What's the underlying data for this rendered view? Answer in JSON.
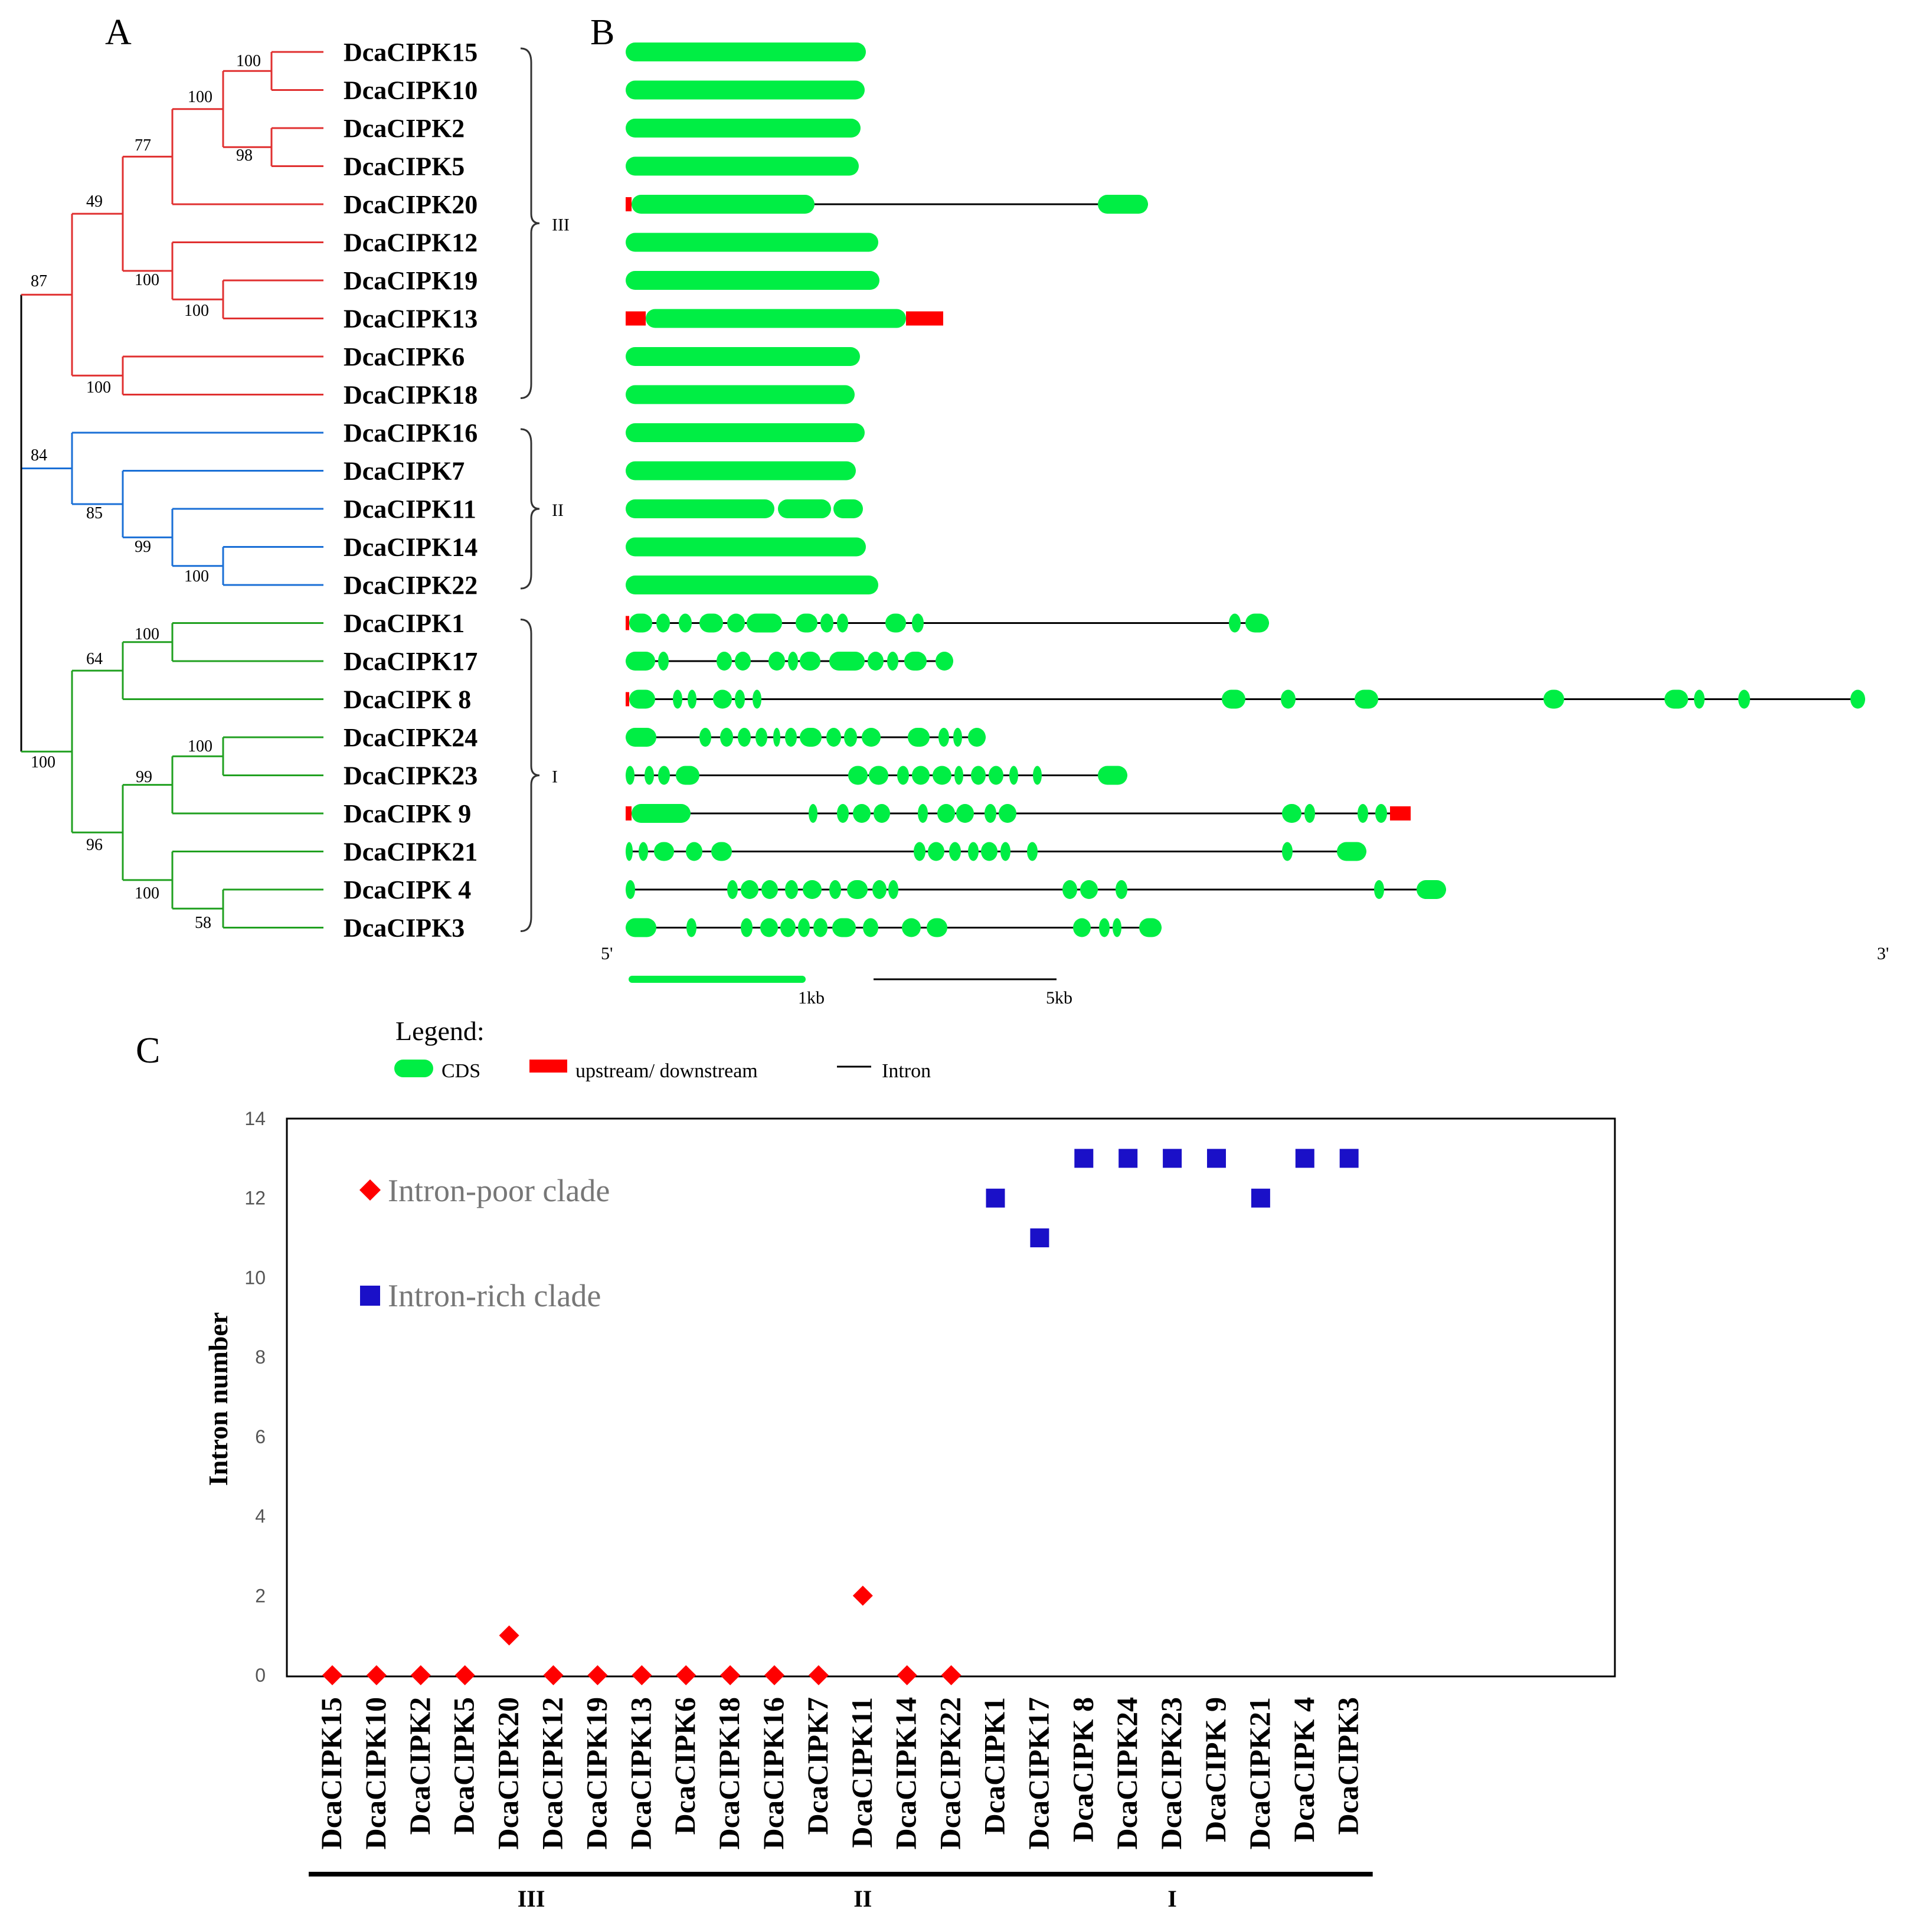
{
  "panels": {
    "a": "A",
    "b": "B",
    "c": "C"
  },
  "genes": [
    "DcaCIPK15",
    "DcaCIPK10",
    "DcaCIPK2",
    "DcaCIPK5",
    "DcaCIPK20",
    "DcaCIPK12",
    "DcaCIPK19",
    "DcaCIPK13",
    "DcaCIPK6",
    "DcaCIPK18",
    "DcaCIPK16",
    "DcaCIPK7",
    "DcaCIPK11",
    "DcaCIPK14",
    "DcaCIPK22",
    "DcaCIPK1",
    "DcaCIPK17",
    "DcaCIPK 8",
    "DcaCIPK24",
    "DcaCIPK23",
    "DcaCIPK 9",
    "DcaCIPK21",
    "DcaCIPK 4",
    "DcaCIPK3"
  ],
  "tree": {
    "bootstraps": [
      "100",
      "100",
      "98",
      "77",
      "49",
      "100",
      "100",
      "87",
      "100",
      "84",
      "85",
      "99",
      "100",
      "100",
      "64",
      "100",
      "99",
      "96",
      "100",
      "58",
      "100"
    ],
    "clades": [
      "III",
      "II",
      "I"
    ],
    "colors": {
      "III": "#e03030",
      "II": "#1a6fd6",
      "I": "#20a020",
      "root": "#000000"
    }
  },
  "gene_structure": {
    "five_prime": "5'",
    "three_prime": "3'",
    "scale_1kb": "1kb",
    "scale_5kb": "5kb",
    "legend": {
      "title": "Legend:",
      "cds": "CDS",
      "utr": "upstream/ downstream",
      "intron": "Intron"
    },
    "colors": {
      "cds": "#00ee44",
      "utr": "#ff0000",
      "intron": "#000000"
    }
  },
  "chart_data": {
    "type": "scatter",
    "xlabel": "",
    "ylabel": "Intron number",
    "ylim": [
      0,
      14
    ],
    "yticks": [
      "0",
      "2",
      "4",
      "6",
      "8",
      "10",
      "12",
      "14"
    ],
    "categories": [
      "DcaCIPK15",
      "DcaCIPK10",
      "DcaCIPK2",
      "DcaCIPK5",
      "DcaCIPK20",
      "DcaCIPK12",
      "DcaCIPK19",
      "DcaCIPK13",
      "DcaCIPK6",
      "DcaCIPK18",
      "DcaCIPK16",
      "DcaCIPK7",
      "DcaCIPK11",
      "DcaCIPK14",
      "DcaCIPK22",
      "DcaCIPK1",
      "DcaCIPK17",
      "DcaCIPK 8",
      "DcaCIPK24",
      "DcaCIPK23",
      "DcaCIPK 9",
      "DcaCIPK21",
      "DcaCIPK 4",
      "DcaCIPK3"
    ],
    "series": [
      {
        "name": "Intron-poor clade",
        "marker": "diamond",
        "color": "#ff0000",
        "values": [
          0,
          0,
          0,
          0,
          1,
          0,
          0,
          0,
          0,
          0,
          0,
          0,
          2,
          0,
          0,
          null,
          null,
          null,
          null,
          null,
          null,
          null,
          null,
          null
        ]
      },
      {
        "name": "Intron-rich clade",
        "marker": "square",
        "color": "#1a10c8",
        "values": [
          null,
          null,
          null,
          null,
          null,
          null,
          null,
          null,
          null,
          null,
          null,
          null,
          null,
          null,
          null,
          12,
          11,
          13,
          13,
          13,
          13,
          12,
          13,
          13
        ]
      }
    ],
    "groups": [
      {
        "label": "III",
        "from": 0,
        "to": 9
      },
      {
        "label": "II",
        "from": 10,
        "to": 14
      },
      {
        "label": "I",
        "from": 15,
        "to": 23
      }
    ],
    "legend_position": "top-left"
  }
}
